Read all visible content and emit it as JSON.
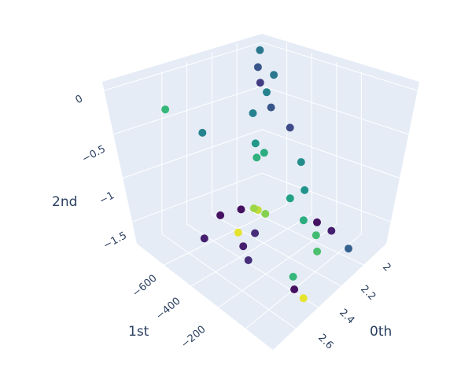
{
  "chart_data": {
    "type": "scatter3d",
    "axes": {
      "x": {
        "title": "0th",
        "ticks": [
          "2",
          "2.2",
          "2.4",
          "2.6"
        ],
        "range": [
          1.95,
          2.7
        ]
      },
      "y": {
        "title": "1st",
        "ticks": [
          "−600",
          "−400",
          "−200"
        ],
        "range": [
          -700,
          -100
        ]
      },
      "z": {
        "title": "2nd",
        "ticks": [
          "0",
          "−0.5",
          "−1",
          "−1.5"
        ],
        "range": [
          -1.75,
          0.1
        ]
      }
    },
    "colorscale": "viridis",
    "points": [
      {
        "x": 2.0,
        "y": -150,
        "z": 0.0,
        "c": 0.45
      },
      {
        "x": 2.05,
        "y": -200,
        "z": -0.1,
        "c": 0.3
      },
      {
        "x": 2.12,
        "y": -180,
        "z": -0.15,
        "c": 0.45
      },
      {
        "x": 2.1,
        "y": -230,
        "z": -0.2,
        "c": 0.2
      },
      {
        "x": 2.15,
        "y": -240,
        "z": -0.25,
        "c": 0.5
      },
      {
        "x": 2.2,
        "y": -260,
        "z": -0.35,
        "c": 0.3
      },
      {
        "x": 2.3,
        "y": -250,
        "z": -0.5,
        "c": 0.25
      },
      {
        "x": 2.4,
        "y": -280,
        "z": -0.75,
        "c": 0.55
      },
      {
        "x": 2.2,
        "y": -350,
        "z": -0.3,
        "c": 0.5
      },
      {
        "x": 2.25,
        "y": -380,
        "z": -0.55,
        "c": 0.6
      },
      {
        "x": 2.3,
        "y": -380,
        "z": -0.6,
        "c": 0.7
      },
      {
        "x": 2.28,
        "y": -400,
        "z": -0.65,
        "c": 0.72
      },
      {
        "x": 2.45,
        "y": -380,
        "z": -0.95,
        "c": 0.65
      },
      {
        "x": 2.5,
        "y": -350,
        "z": -0.85,
        "c": 0.58
      },
      {
        "x": 2.55,
        "y": -400,
        "z": -1.05,
        "c": 0.7
      },
      {
        "x": 2.6,
        "y": -380,
        "z": -1.2,
        "c": 0.78
      },
      {
        "x": 2.55,
        "y": -330,
        "z": -1.2,
        "c": 0.05
      },
      {
        "x": 2.6,
        "y": -300,
        "z": -1.3,
        "c": 0.1
      },
      {
        "x": 2.7,
        "y": -300,
        "z": -1.4,
        "c": 0.35
      },
      {
        "x": 2.65,
        "y": -420,
        "z": -1.25,
        "c": 0.8
      },
      {
        "x": 2.4,
        "y": -500,
        "z": -0.95,
        "c": 0.95
      },
      {
        "x": 2.42,
        "y": -480,
        "z": -1.0,
        "c": 0.9
      },
      {
        "x": 2.4,
        "y": -520,
        "z": -0.9,
        "c": 0.92
      },
      {
        "x": 2.35,
        "y": -540,
        "z": -0.95,
        "c": 0.05
      },
      {
        "x": 2.45,
        "y": -560,
        "z": -1.05,
        "c": 0.15
      },
      {
        "x": 2.3,
        "y": -600,
        "z": -1.0,
        "c": 0.05
      },
      {
        "x": 2.4,
        "y": -600,
        "z": -1.05,
        "c": 0.98
      },
      {
        "x": 2.45,
        "y": -620,
        "z": -1.1,
        "c": 0.1
      },
      {
        "x": 2.5,
        "y": -640,
        "z": -1.15,
        "c": 0.15
      },
      {
        "x": 2.3,
        "y": -680,
        "z": -1.15,
        "c": 0.1
      },
      {
        "x": 2.6,
        "y": -500,
        "z": -1.45,
        "c": 0.75
      },
      {
        "x": 2.65,
        "y": -540,
        "z": -1.45,
        "c": 0.05
      },
      {
        "x": 2.68,
        "y": -520,
        "z": -1.55,
        "c": 0.98
      },
      {
        "x": 2.05,
        "y": -650,
        "z": -0.1,
        "c": 0.75
      },
      {
        "x": 2.2,
        "y": -600,
        "z": -0.2,
        "c": 0.5
      }
    ]
  }
}
